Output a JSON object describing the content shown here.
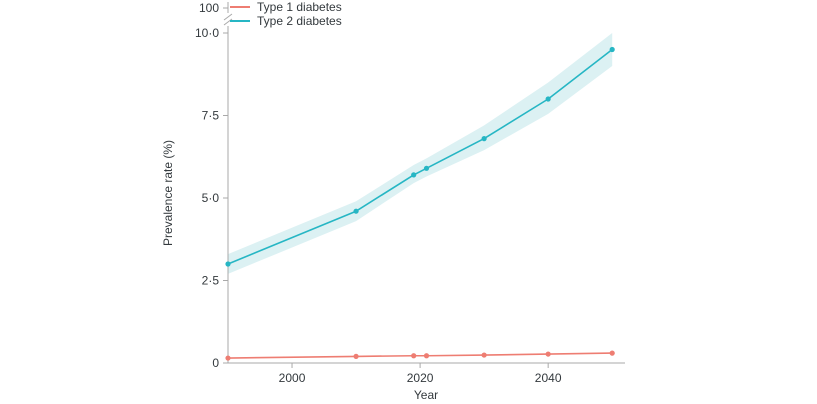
{
  "chart_data": {
    "type": "line",
    "title": "",
    "xlabel": "Year",
    "ylabel": "Prevalence rate (%)",
    "x": [
      1990,
      2010,
      2019,
      2021,
      2030,
      2040,
      2050
    ],
    "x_ticks": [
      2000,
      2020,
      2040
    ],
    "y_ticks": [
      "0",
      "2·5",
      "5·0",
      "7·5",
      "10·0"
    ],
    "y_tick_values": [
      0,
      2.5,
      5.0,
      7.5,
      10.0
    ],
    "axis_break_label": "100",
    "axis_break": {
      "from": 10,
      "to": 100
    },
    "xlim": [
      1990,
      2052
    ],
    "ylim": [
      0,
      10
    ],
    "grid": false,
    "legend_position": "top-left",
    "series": [
      {
        "name": "Type 1 diabetes",
        "color": "#ee7d72",
        "values": [
          0.15,
          0.2,
          0.22,
          0.22,
          0.24,
          0.27,
          0.3
        ]
      },
      {
        "name": "Type 2 diabetes",
        "color": "#26b6c4",
        "values": [
          3.0,
          4.6,
          5.7,
          5.9,
          6.8,
          8.0,
          9.5
        ],
        "band_lower": [
          2.7,
          4.3,
          5.45,
          5.65,
          6.45,
          7.55,
          9.0
        ],
        "band_upper": [
          3.3,
          4.9,
          6.0,
          6.2,
          7.2,
          8.5,
          10.0
        ],
        "band_color": "#dcf1f3"
      }
    ]
  }
}
